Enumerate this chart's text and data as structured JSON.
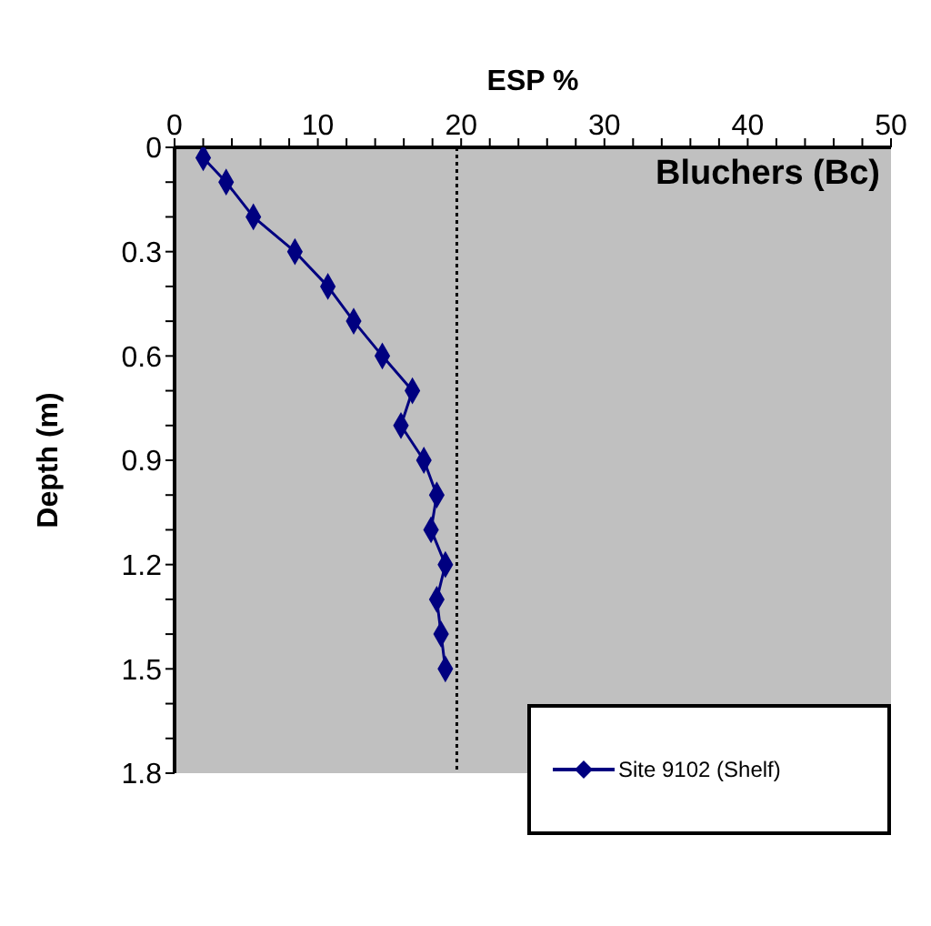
{
  "chart_data": {
    "type": "line",
    "xlabel": "ESP %",
    "ylabel": "Depth (m)",
    "annotations": [
      "Bluchers (Bc)"
    ],
    "series": [
      {
        "name": "Site 9102 (Shelf)",
        "color": "#000080",
        "x": [
          2.0,
          3.6,
          5.5,
          8.4,
          10.7,
          12.5,
          14.5,
          16.6,
          15.8,
          17.4,
          18.3,
          17.9,
          18.9,
          18.3,
          18.6,
          18.9
        ],
        "values": [
          0.03,
          0.1,
          0.2,
          0.3,
          0.4,
          0.5,
          0.6,
          0.7,
          0.8,
          0.9,
          1.0,
          1.1,
          1.2,
          1.3,
          1.4,
          1.5
        ]
      }
    ],
    "xlim": [
      0,
      50
    ],
    "xticks": [
      0,
      {
        "value": 2,
        "label": null
      },
      {
        "value": 4,
        "label": null
      },
      {
        "value": 6,
        "label": null
      },
      {
        "value": 8,
        "label": null
      },
      10,
      {
        "value": 12,
        "label": null
      },
      {
        "value": 14,
        "label": null
      },
      {
        "value": 16,
        "label": null
      },
      {
        "value": 18,
        "label": null
      },
      20,
      {
        "value": 22,
        "label": null
      },
      {
        "value": 24,
        "label": null
      },
      {
        "value": 26,
        "label": null
      },
      {
        "value": 28,
        "label": null
      },
      30,
      {
        "value": 32,
        "label": null
      },
      {
        "value": 34,
        "label": null
      },
      {
        "value": 36,
        "label": null
      },
      {
        "value": 38,
        "label": null
      },
      40,
      {
        "value": 42,
        "label": null
      },
      {
        "value": 44,
        "label": null
      },
      {
        "value": 46,
        "label": null
      },
      {
        "value": 48,
        "label": null
      },
      50
    ],
    "ylim": [
      1.8,
      0
    ],
    "yticks": [
      0,
      {
        "value": 0.1,
        "label": null
      },
      {
        "value": 0.2,
        "label": null
      },
      0.3,
      {
        "value": 0.4,
        "label": null
      },
      {
        "value": 0.5,
        "label": null
      },
      0.6,
      {
        "value": 0.7,
        "label": null
      },
      {
        "value": 0.8,
        "label": null
      },
      0.9,
      {
        "value": 1.0,
        "label": null
      },
      {
        "value": 1.1,
        "label": null
      },
      1.2,
      {
        "value": 1.3,
        "label": null
      },
      {
        "value": 1.4,
        "label": null
      },
      1.5,
      {
        "value": 1.6,
        "label": null
      },
      {
        "value": 1.7,
        "label": null
      },
      1.8
    ],
    "ref_lines": [
      {
        "axis": "x",
        "value": 19.7,
        "color": "#000000",
        "line_style": "dotted"
      }
    ],
    "marker": "diamond",
    "line_style": "solid",
    "grid": false,
    "legend": "bottom right"
  }
}
